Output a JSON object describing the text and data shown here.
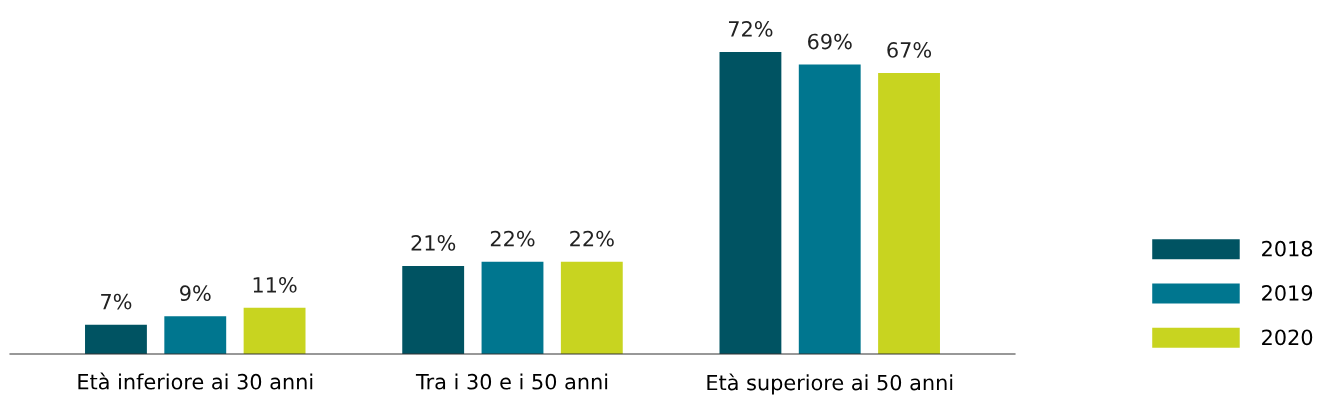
{
  "chart_data": {
    "type": "bar",
    "categories": [
      "Età inferiore ai 30 anni",
      "Tra i 30 e i 50 anni",
      "Età superiore ai 50 anni"
    ],
    "series": [
      {
        "name": "2018",
        "color": "#005362",
        "values": [
          7,
          21,
          72
        ],
        "value_labels": [
          "7%",
          "21%",
          "72%"
        ]
      },
      {
        "name": "2019",
        "color": "#00768f",
        "values": [
          9,
          22,
          69
        ],
        "value_labels": [
          "9%",
          "22%",
          "69%"
        ]
      },
      {
        "name": "2020",
        "color": "#c8d420",
        "values": [
          11,
          22,
          67
        ],
        "value_labels": [
          "11%",
          "22%",
          "67%"
        ]
      }
    ],
    "legend": "right",
    "grid": false
  }
}
